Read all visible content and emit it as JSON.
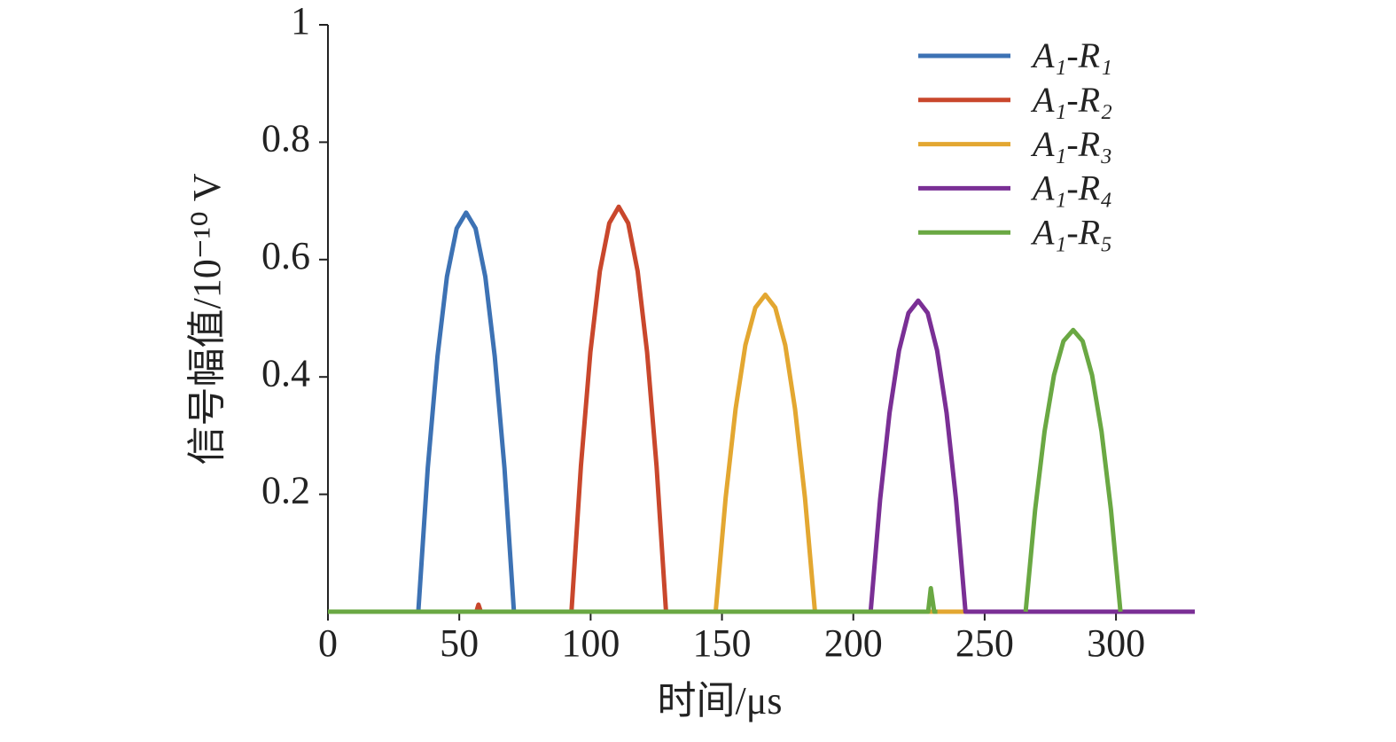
{
  "chart_data": {
    "type": "line",
    "x_label": "时间/μs",
    "y_label": "信号幅值/10⁻¹⁰ V",
    "xlim": [
      0,
      330
    ],
    "ylim": [
      0,
      1
    ],
    "xticks": [
      0,
      50,
      100,
      150,
      200,
      250,
      300
    ],
    "yticks": [
      0.2,
      0.4,
      0.6,
      0.8,
      1.0
    ],
    "legend": "upper right",
    "grid": false,
    "series": [
      {
        "name": "A₁-R₁",
        "color": "#3d72b4",
        "x": [
          0,
          34.4,
          38.0,
          41.7,
          45.3,
          49.0,
          52.6,
          56.2,
          59.9,
          63.5,
          67.2,
          70.8,
          90
        ],
        "values": [
          0,
          0,
          0.245,
          0.435,
          0.571,
          0.653,
          0.68,
          0.653,
          0.571,
          0.435,
          0.245,
          0,
          0
        ]
      },
      {
        "name": "A₁-R₂",
        "color": "#c9472c",
        "x": [
          0,
          56.5,
          57.3,
          58.2,
          92.7,
          96.3,
          99.9,
          103.5,
          107.1,
          110.7,
          114.3,
          117.9,
          121.5,
          125.1,
          128.7,
          150
        ],
        "values": [
          0,
          0,
          0.012,
          0,
          0,
          0.248,
          0.442,
          0.58,
          0.662,
          0.69,
          0.662,
          0.58,
          0.442,
          0.248,
          0,
          0
        ]
      },
      {
        "name": "A₁-R₃",
        "color": "#e3a731",
        "x": [
          0,
          147.6,
          151.4,
          155.2,
          158.9,
          162.7,
          166.5,
          170.3,
          174.1,
          177.8,
          181.6,
          185.4,
          276
        ],
        "values": [
          0,
          0,
          0.194,
          0.346,
          0.454,
          0.518,
          0.54,
          0.518,
          0.454,
          0.346,
          0.194,
          0,
          0
        ]
      },
      {
        "name": "A₁-R₄",
        "color": "#7a2f95",
        "x": [
          0,
          206.6,
          210.2,
          213.8,
          217.4,
          221.0,
          224.7,
          228.3,
          231.9,
          235.5,
          239.1,
          242.7,
          330
        ],
        "values": [
          0,
          0,
          0.191,
          0.339,
          0.445,
          0.509,
          0.53,
          0.509,
          0.445,
          0.339,
          0.191,
          0,
          0
        ]
      },
      {
        "name": "A₁-R₅",
        "color": "#6aa843",
        "x": [
          0,
          228.5,
          229.5,
          230.8,
          232,
          248,
          265.6,
          269.2,
          272.8,
          276.4,
          280.0,
          283.7,
          287.3,
          290.9,
          294.5,
          298.1,
          301.7
        ],
        "values": [
          0,
          0,
          0.04,
          0,
          0,
          null,
          0,
          0.173,
          0.307,
          0.403,
          0.461,
          0.48,
          0.461,
          0.403,
          0.307,
          0.173,
          0
        ]
      }
    ]
  }
}
